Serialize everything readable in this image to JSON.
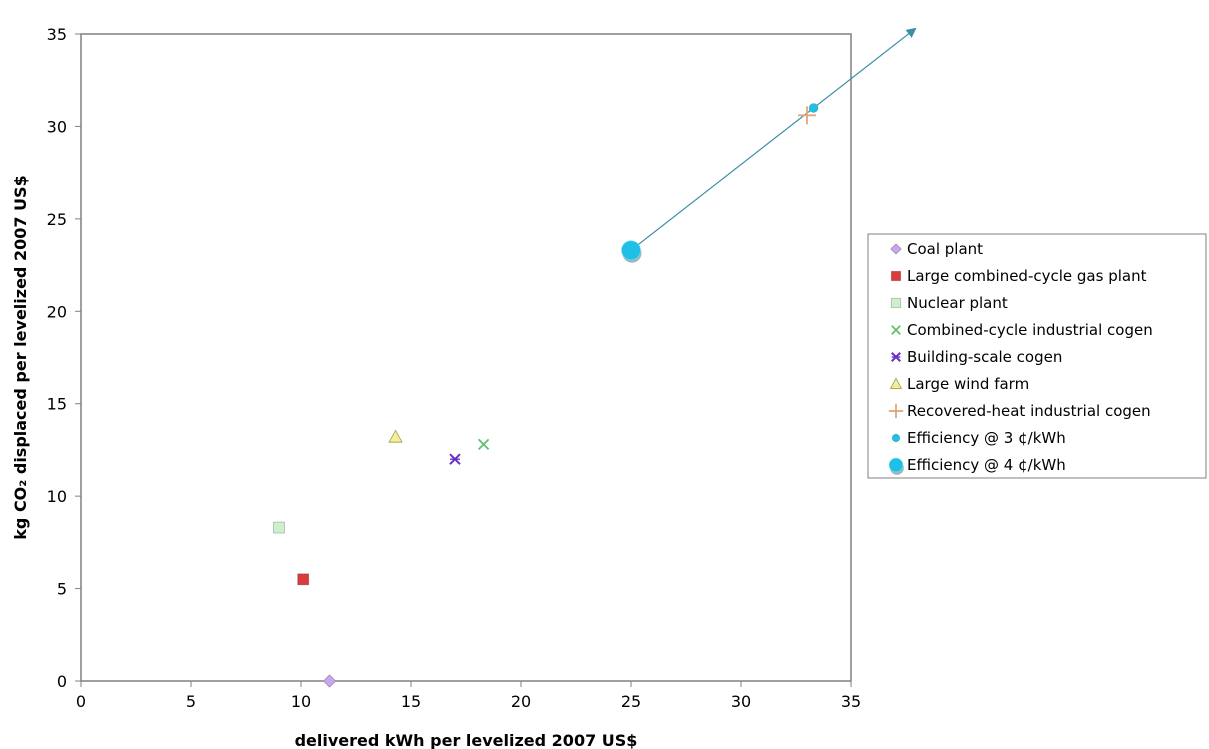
{
  "chart_data": {
    "type": "scatter",
    "title": "",
    "xlabel": "delivered kWh per levelized 2007 US$",
    "ylabel": "kg CO₂ displaced per levelized 2007 US$",
    "xlim": [
      0,
      35
    ],
    "ylim": [
      0,
      35
    ],
    "xticks": [
      0,
      5,
      10,
      15,
      20,
      25,
      30,
      35
    ],
    "yticks": [
      0,
      5,
      10,
      15,
      20,
      25,
      30,
      35
    ],
    "grid": false,
    "legend_position": "right",
    "series": [
      {
        "name": "Coal plant",
        "marker": "diamond",
        "color": "#c8a8e8",
        "points": [
          {
            "x": 11.3,
            "y": 0
          }
        ]
      },
      {
        "name": "Large combined-cycle gas plant",
        "marker": "square",
        "color": "#d83c3c",
        "points": [
          {
            "x": 10.1,
            "y": 5.5
          }
        ]
      },
      {
        "name": "Nuclear plant",
        "marker": "square",
        "color": "#ccf0cc",
        "points": [
          {
            "x": 9.0,
            "y": 8.3
          }
        ]
      },
      {
        "name": "Combined-cycle industrial cogen",
        "marker": "x",
        "color": "#5fbf6f",
        "points": [
          {
            "x": 18.3,
            "y": 12.8
          }
        ]
      },
      {
        "name": "Building-scale cogen",
        "marker": "star",
        "color": "#6a2fc8",
        "points": [
          {
            "x": 17.0,
            "y": 12.0
          }
        ]
      },
      {
        "name": "Large wind farm",
        "marker": "triangle",
        "color": "#f3ee9c",
        "points": [
          {
            "x": 14.3,
            "y": 13.2
          }
        ]
      },
      {
        "name": "Recovered-heat industrial cogen",
        "marker": "plus",
        "color": "#e0a878",
        "points": [
          {
            "x": 33.0,
            "y": 30.6
          }
        ]
      },
      {
        "name": "Efficiency @ 3 ¢/kWh",
        "marker": "circle-small",
        "color": "#1fbfe6",
        "points": [
          {
            "x": 33.3,
            "y": 31.0
          }
        ]
      },
      {
        "name": "Efficiency @ 4 ¢/kWh",
        "marker": "circle-large",
        "color": "#1fbfe6",
        "points": [
          {
            "x": 25.0,
            "y": 23.3
          }
        ]
      }
    ],
    "annotations": [
      {
        "type": "arrow",
        "from": {
          "x": 25.0,
          "y": 23.3
        },
        "direction": "up-right",
        "color": "#3a8fa6"
      }
    ]
  }
}
